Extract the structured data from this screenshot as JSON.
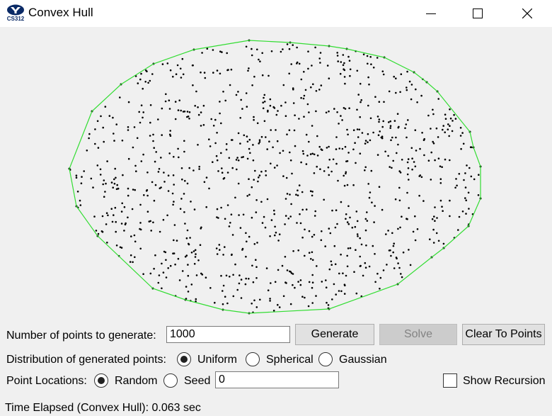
{
  "window": {
    "title": "Convex Hull",
    "icon": "byu-cs312-logo-icon",
    "icon_text": "CS312"
  },
  "controls": {
    "num_points_label": "Number of points to generate:",
    "num_points_value": "1000",
    "generate_label": "Generate",
    "solve_label": "Solve",
    "clear_label": "Clear To Points",
    "distribution_label": "Distribution of generated points:",
    "distribution_options": [
      "Uniform",
      "Spherical",
      "Gaussian"
    ],
    "distribution_selected": "Uniform",
    "locations_label": "Point Locations:",
    "location_options": [
      "Random",
      "Seed"
    ],
    "location_selected": "Random",
    "seed_value": "0",
    "show_recursion_label": "Show Recursion",
    "show_recursion_checked": false
  },
  "status": {
    "time_elapsed": "Time Elapsed (Convex Hull): 0.063 sec"
  },
  "colors": {
    "hull_line": "#33dd33",
    "points": "#000000"
  }
}
